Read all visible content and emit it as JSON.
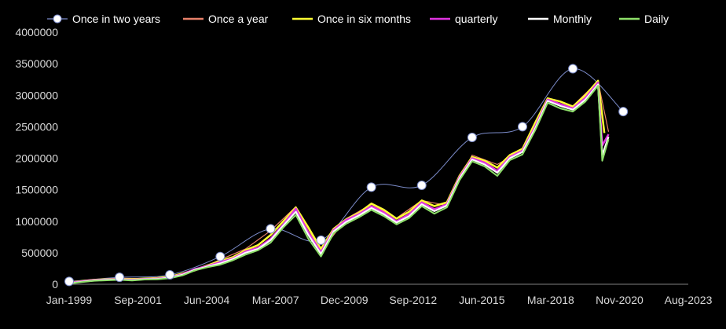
{
  "chart_data": {
    "type": "line",
    "title": "",
    "xlabel": "",
    "ylabel": "",
    "ylim": [
      0,
      4000000
    ],
    "y_ticks": [
      0,
      500000,
      1000000,
      1500000,
      2000000,
      2500000,
      3000000,
      3500000,
      4000000
    ],
    "y_tick_labels": [
      "0",
      "500000",
      "1000000",
      "1500000",
      "2000000",
      "2500000",
      "3000000",
      "3500000",
      "4000000"
    ],
    "x_tick_labels": [
      "Jan-1999",
      "Sep-2001",
      "Jun-2004",
      "Mar-2007",
      "Dec-2009",
      "Sep-2012",
      "Jun-2015",
      "Mar-2018",
      "Nov-2020",
      "Aug-2023"
    ],
    "xlim": [
      "1999-01",
      "2023-08"
    ],
    "grid": false,
    "legend": "top",
    "series": [
      {
        "name": "Once in two years",
        "color": "#7b8bc9",
        "marker": "circle",
        "points": [
          [
            "1999-01",
            45000
          ],
          [
            "2001-01",
            110000
          ],
          [
            "2003-01",
            150000
          ],
          [
            "2005-01",
            440000
          ],
          [
            "2007-01",
            880000
          ],
          [
            "2009-01",
            700000
          ],
          [
            "2011-01",
            1540000
          ],
          [
            "2013-01",
            1570000
          ],
          [
            "2015-01",
            2330000
          ],
          [
            "2017-01",
            2500000
          ],
          [
            "2019-01",
            3420000
          ],
          [
            "2021-01",
            2740000
          ]
        ]
      },
      {
        "name": "Once a year",
        "color": "#e8806a",
        "points": [
          [
            "1999-01",
            30000
          ],
          [
            "2000-01",
            65000
          ],
          [
            "2001-01",
            95000
          ],
          [
            "2002-01",
            90000
          ],
          [
            "2003-01",
            115000
          ],
          [
            "2004-01",
            210000
          ],
          [
            "2005-01",
            390000
          ],
          [
            "2006-01",
            560000
          ],
          [
            "2007-01",
            850000
          ],
          [
            "2008-01",
            1230000
          ],
          [
            "2009-01",
            520000
          ],
          [
            "2010-01",
            1040000
          ],
          [
            "2011-01",
            1270000
          ],
          [
            "2012-01",
            1050000
          ],
          [
            "2013-01",
            1330000
          ],
          [
            "2014-01",
            1250000
          ],
          [
            "2015-01",
            2050000
          ],
          [
            "2016-01",
            1900000
          ],
          [
            "2017-01",
            2130000
          ],
          [
            "2018-01",
            2960000
          ],
          [
            "2019-01",
            2830000
          ],
          [
            "2020-01",
            3220000
          ],
          [
            "2020-06",
            2420000
          ]
        ]
      },
      {
        "name": "Once in six months",
        "color": "#ffff33",
        "points": [
          [
            "1999-01",
            25000
          ],
          [
            "1999-07",
            50000
          ],
          [
            "2000-01",
            70000
          ],
          [
            "2000-07",
            80000
          ],
          [
            "2001-01",
            85000
          ],
          [
            "2001-07",
            80000
          ],
          [
            "2002-01",
            90000
          ],
          [
            "2002-07",
            100000
          ],
          [
            "2003-01",
            120000
          ],
          [
            "2003-07",
            170000
          ],
          [
            "2004-01",
            230000
          ],
          [
            "2004-07",
            300000
          ],
          [
            "2005-01",
            370000
          ],
          [
            "2005-07",
            430000
          ],
          [
            "2006-01",
            540000
          ],
          [
            "2006-07",
            620000
          ],
          [
            "2007-01",
            780000
          ],
          [
            "2007-07",
            1000000
          ],
          [
            "2008-01",
            1220000
          ],
          [
            "2008-07",
            900000
          ],
          [
            "2009-01",
            560000
          ],
          [
            "2009-07",
            880000
          ],
          [
            "2010-01",
            1030000
          ],
          [
            "2010-07",
            1130000
          ],
          [
            "2011-01",
            1280000
          ],
          [
            "2011-07",
            1180000
          ],
          [
            "2012-01",
            1040000
          ],
          [
            "2012-07",
            1150000
          ],
          [
            "2013-01",
            1330000
          ],
          [
            "2013-07",
            1240000
          ],
          [
            "2014-01",
            1300000
          ],
          [
            "2014-07",
            1720000
          ],
          [
            "2015-01",
            2020000
          ],
          [
            "2015-07",
            1960000
          ],
          [
            "2016-01",
            1850000
          ],
          [
            "2016-07",
            2050000
          ],
          [
            "2017-01",
            2150000
          ],
          [
            "2017-07",
            2560000
          ],
          [
            "2018-01",
            2950000
          ],
          [
            "2018-07",
            2900000
          ],
          [
            "2019-01",
            2820000
          ],
          [
            "2019-07",
            3000000
          ],
          [
            "2020-01",
            3230000
          ],
          [
            "2020-04",
            2400000
          ]
        ]
      },
      {
        "name": "quarterly",
        "color": "#e033e0",
        "points": [
          [
            "1999-01",
            20000
          ],
          [
            "1999-07",
            45000
          ],
          [
            "2000-01",
            65000
          ],
          [
            "2000-07",
            75000
          ],
          [
            "2001-01",
            80000
          ],
          [
            "2001-07",
            70000
          ],
          [
            "2002-01",
            85000
          ],
          [
            "2002-07",
            90000
          ],
          [
            "2003-01",
            110000
          ],
          [
            "2003-07",
            160000
          ],
          [
            "2004-01",
            240000
          ],
          [
            "2004-07",
            290000
          ],
          [
            "2005-01",
            350000
          ],
          [
            "2005-07",
            410000
          ],
          [
            "2006-01",
            520000
          ],
          [
            "2006-07",
            580000
          ],
          [
            "2007-01",
            720000
          ],
          [
            "2007-07",
            950000
          ],
          [
            "2008-01",
            1200000
          ],
          [
            "2008-07",
            820000
          ],
          [
            "2009-01",
            510000
          ],
          [
            "2009-07",
            860000
          ],
          [
            "2010-01",
            1020000
          ],
          [
            "2010-07",
            1110000
          ],
          [
            "2011-01",
            1240000
          ],
          [
            "2011-07",
            1140000
          ],
          [
            "2012-01",
            1000000
          ],
          [
            "2012-07",
            1110000
          ],
          [
            "2013-01",
            1300000
          ],
          [
            "2013-07",
            1190000
          ],
          [
            "2014-01",
            1270000
          ],
          [
            "2014-07",
            1700000
          ],
          [
            "2015-01",
            2000000
          ],
          [
            "2015-07",
            1930000
          ],
          [
            "2016-01",
            1800000
          ],
          [
            "2016-07",
            2020000
          ],
          [
            "2017-01",
            2120000
          ],
          [
            "2017-07",
            2500000
          ],
          [
            "2018-01",
            2930000
          ],
          [
            "2018-07",
            2860000
          ],
          [
            "2019-01",
            2790000
          ],
          [
            "2019-07",
            2960000
          ],
          [
            "2020-01",
            3200000
          ],
          [
            "2020-03",
            2200000
          ],
          [
            "2020-06",
            2380000
          ]
        ]
      },
      {
        "name": "Monthly",
        "color": "#ffffff",
        "points": [
          [
            "1999-01",
            15000
          ],
          [
            "1999-07",
            40000
          ],
          [
            "2000-01",
            60000
          ],
          [
            "2000-07",
            70000
          ],
          [
            "2001-01",
            75000
          ],
          [
            "2001-07",
            65000
          ],
          [
            "2002-01",
            80000
          ],
          [
            "2002-07",
            85000
          ],
          [
            "2003-01",
            105000
          ],
          [
            "2003-07",
            150000
          ],
          [
            "2004-01",
            230000
          ],
          [
            "2004-07",
            280000
          ],
          [
            "2005-01",
            330000
          ],
          [
            "2005-07",
            400000
          ],
          [
            "2006-01",
            500000
          ],
          [
            "2006-07",
            560000
          ],
          [
            "2007-01",
            700000
          ],
          [
            "2007-07",
            930000
          ],
          [
            "2008-01",
            1150000
          ],
          [
            "2008-07",
            780000
          ],
          [
            "2009-01",
            480000
          ],
          [
            "2009-07",
            840000
          ],
          [
            "2010-01",
            990000
          ],
          [
            "2010-07",
            1090000
          ],
          [
            "2011-01",
            1210000
          ],
          [
            "2011-07",
            1110000
          ],
          [
            "2012-01",
            980000
          ],
          [
            "2012-07",
            1080000
          ],
          [
            "2013-01",
            1270000
          ],
          [
            "2013-07",
            1160000
          ],
          [
            "2014-01",
            1250000
          ],
          [
            "2014-07",
            1680000
          ],
          [
            "2015-01",
            1980000
          ],
          [
            "2015-07",
            1900000
          ],
          [
            "2016-01",
            1770000
          ],
          [
            "2016-07",
            2000000
          ],
          [
            "2017-01",
            2100000
          ],
          [
            "2017-07",
            2470000
          ],
          [
            "2018-01",
            2910000
          ],
          [
            "2018-07",
            2830000
          ],
          [
            "2019-01",
            2770000
          ],
          [
            "2019-07",
            2930000
          ],
          [
            "2020-01",
            3170000
          ],
          [
            "2020-03",
            2050000
          ],
          [
            "2020-06",
            2340000
          ]
        ]
      },
      {
        "name": "Daily",
        "color": "#8ee06a",
        "points": [
          [
            "1999-01",
            10000
          ],
          [
            "1999-07",
            35000
          ],
          [
            "2000-01",
            55000
          ],
          [
            "2000-07",
            62000
          ],
          [
            "2001-01",
            70000
          ],
          [
            "2001-07",
            58000
          ],
          [
            "2002-01",
            75000
          ],
          [
            "2002-07",
            78000
          ],
          [
            "2003-01",
            95000
          ],
          [
            "2003-07",
            140000
          ],
          [
            "2004-01",
            220000
          ],
          [
            "2004-07",
            270000
          ],
          [
            "2005-01",
            310000
          ],
          [
            "2005-07",
            380000
          ],
          [
            "2006-01",
            470000
          ],
          [
            "2006-07",
            540000
          ],
          [
            "2007-01",
            660000
          ],
          [
            "2007-07",
            900000
          ],
          [
            "2008-01",
            1100000
          ],
          [
            "2008-07",
            720000
          ],
          [
            "2009-01",
            440000
          ],
          [
            "2009-07",
            810000
          ],
          [
            "2010-01",
            960000
          ],
          [
            "2010-07",
            1060000
          ],
          [
            "2011-01",
            1180000
          ],
          [
            "2011-07",
            1080000
          ],
          [
            "2012-01",
            950000
          ],
          [
            "2012-07",
            1050000
          ],
          [
            "2013-01",
            1240000
          ],
          [
            "2013-07",
            1120000
          ],
          [
            "2014-01",
            1220000
          ],
          [
            "2014-07",
            1650000
          ],
          [
            "2015-01",
            1950000
          ],
          [
            "2015-07",
            1870000
          ],
          [
            "2016-01",
            1720000
          ],
          [
            "2016-07",
            1970000
          ],
          [
            "2017-01",
            2060000
          ],
          [
            "2017-07",
            2440000
          ],
          [
            "2018-01",
            2880000
          ],
          [
            "2018-07",
            2790000
          ],
          [
            "2019-01",
            2740000
          ],
          [
            "2019-07",
            2900000
          ],
          [
            "2020-01",
            3150000
          ],
          [
            "2020-03",
            1960000
          ],
          [
            "2020-06",
            2300000
          ]
        ]
      }
    ]
  }
}
